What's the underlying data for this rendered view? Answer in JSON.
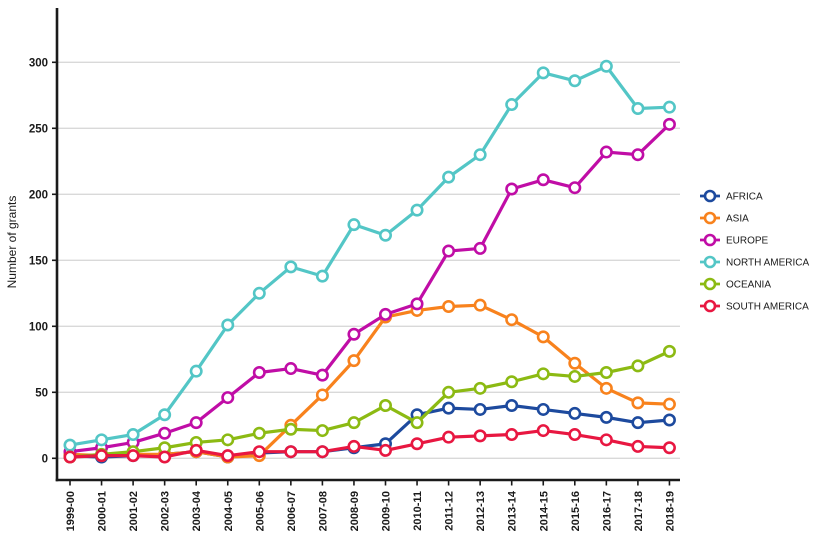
{
  "chart_data": {
    "type": "line",
    "title": "",
    "xlabel": "",
    "ylabel": "Number of grants",
    "ylim": [
      0,
      300
    ],
    "yticks": [
      0,
      50,
      100,
      150,
      200,
      250,
      300
    ],
    "grid": "horizontal-major",
    "legend_position": "right",
    "marker_style": "open-circle",
    "categories": [
      "1999-00",
      "2000-01",
      "2001-02",
      "2002-03",
      "2003-04",
      "2004-05",
      "2005-06",
      "2006-07",
      "2007-08",
      "2008-09",
      "2009-10",
      "2010-11",
      "2011-12",
      "2012-13",
      "2013-14",
      "2014-15",
      "2015-16",
      "2016-17",
      "2017-18",
      "2018-19"
    ],
    "series": [
      {
        "name": "AFRICA",
        "color": "#1d4a9e",
        "values": [
          2,
          1,
          2,
          3,
          5,
          1,
          4,
          5,
          5,
          8,
          11,
          33,
          38,
          37,
          40,
          37,
          34,
          31,
          27,
          29
        ]
      },
      {
        "name": "ASIA",
        "color": "#f8821d",
        "values": [
          3,
          2,
          3,
          3,
          5,
          1,
          2,
          25,
          48,
          74,
          107,
          112,
          115,
          116,
          105,
          92,
          72,
          53,
          42,
          41
        ]
      },
      {
        "name": "EUROPE",
        "color": "#c00da6",
        "values": [
          5,
          8,
          12,
          19,
          27,
          46,
          65,
          68,
          63,
          94,
          109,
          117,
          157,
          159,
          204,
          211,
          205,
          232,
          230,
          253
        ]
      },
      {
        "name": "NORTH AMERICA",
        "color": "#53c6c6",
        "values": [
          10,
          14,
          18,
          33,
          66,
          101,
          125,
          145,
          138,
          177,
          169,
          188,
          213,
          230,
          268,
          292,
          286,
          297,
          265,
          266
        ]
      },
      {
        "name": "OCEANIA",
        "color": "#8cba13",
        "values": [
          1,
          3,
          5,
          8,
          12,
          14,
          19,
          22,
          21,
          27,
          40,
          27,
          50,
          53,
          58,
          64,
          62,
          65,
          70,
          81
        ]
      },
      {
        "name": "SOUTH AMERICA",
        "color": "#e81741",
        "values": [
          1,
          2,
          2,
          1,
          6,
          2,
          5,
          5,
          5,
          9,
          6,
          11,
          16,
          17,
          18,
          21,
          18,
          14,
          9,
          8
        ]
      }
    ],
    "style": {
      "axis_color": "#1a1a1a",
      "grid_color": "#d9d9d9",
      "background": "#ffffff"
    }
  }
}
